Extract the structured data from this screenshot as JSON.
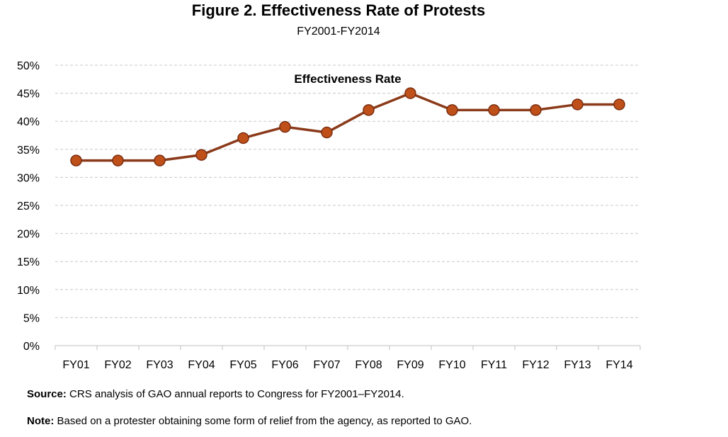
{
  "figure": {
    "title": "Figure 2. Effectiveness Rate of Protests",
    "subtitle": "FY2001-FY2014"
  },
  "chart_data": {
    "type": "line",
    "title": "Effectiveness Rate",
    "categories": [
      "FY01",
      "FY02",
      "FY03",
      "FY04",
      "FY05",
      "FY06",
      "FY07",
      "FY08",
      "FY09",
      "FY10",
      "FY11",
      "FY12",
      "FY13",
      "FY14"
    ],
    "series": [
      {
        "name": "Effectiveness Rate",
        "values": [
          33,
          33,
          33,
          34,
          37,
          39,
          38,
          42,
          45,
          42,
          42,
          42,
          43,
          43
        ]
      }
    ],
    "ylim": [
      0,
      50
    ],
    "yticks": [
      "0%",
      "5%",
      "10%",
      "15%",
      "20%",
      "25%",
      "30%",
      "35%",
      "40%",
      "45%",
      "50%"
    ],
    "grid": true,
    "xlabel": "",
    "ylabel": "",
    "colors": {
      "line": "#8B3A1A",
      "marker_fill": "#C0501A",
      "marker_edge": "#7A2E10"
    }
  },
  "footer": {
    "source_label": "Source:",
    "source_text": " CRS analysis of GAO annual reports to Congress for FY2001–FY2014.",
    "note_label": "Note:",
    "note_text": " Based on a protester obtaining some form of relief from the agency, as reported to GAO."
  }
}
